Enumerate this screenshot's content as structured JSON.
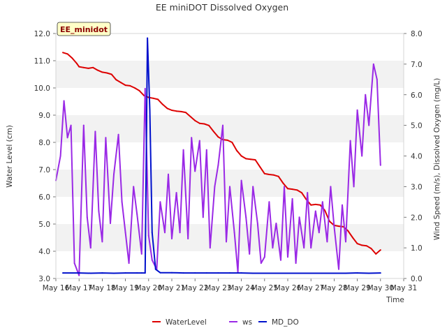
{
  "chart_data": {
    "type": "line",
    "title": "EE miniDOT Dissolved Oxygen",
    "badge": "EE_minidot",
    "xlabel": "Time",
    "ylabel_left": "Water Level (cm)",
    "ylabel_right": "Wind Speed (m/s), Dissolved Oxygen (mg/L)",
    "xlim": [
      16,
      31
    ],
    "ylim_left": [
      3.0,
      12.0
    ],
    "ylim_right": [
      0.0,
      8.0
    ],
    "x_ticks": [
      {
        "value": 16,
        "label": "May 16"
      },
      {
        "value": 17,
        "label": "May 17"
      },
      {
        "value": 18,
        "label": "May 18"
      },
      {
        "value": 19,
        "label": "May 19"
      },
      {
        "value": 20,
        "label": "May 20"
      },
      {
        "value": 21,
        "label": "May 21"
      },
      {
        "value": 22,
        "label": "May 22"
      },
      {
        "value": 23,
        "label": "May 23"
      },
      {
        "value": 24,
        "label": "May 24"
      },
      {
        "value": 25,
        "label": "May 25"
      },
      {
        "value": 26,
        "label": "May 26"
      },
      {
        "value": 27,
        "label": "May 27"
      },
      {
        "value": 28,
        "label": "May 28"
      },
      {
        "value": 29,
        "label": "May 29"
      },
      {
        "value": 30,
        "label": "May 30"
      },
      {
        "value": 31,
        "label": "May 31"
      }
    ],
    "y_ticks_left": [
      {
        "value": 3,
        "label": "3.0"
      },
      {
        "value": 4,
        "label": "4.0"
      },
      {
        "value": 5,
        "label": "5.0"
      },
      {
        "value": 6,
        "label": "6.0"
      },
      {
        "value": 7,
        "label": "7.0"
      },
      {
        "value": 8,
        "label": "8.0"
      },
      {
        "value": 9,
        "label": "9.0"
      },
      {
        "value": 10,
        "label": "10.0"
      },
      {
        "value": 11,
        "label": "11.0"
      },
      {
        "value": 12,
        "label": "12.0"
      }
    ],
    "y_ticks_right": [
      {
        "value": 0,
        "label": "0.0"
      },
      {
        "value": 1,
        "label": "1.0"
      },
      {
        "value": 2,
        "label": "2.0"
      },
      {
        "value": 3,
        "label": "3.0"
      },
      {
        "value": 4,
        "label": "4.0"
      },
      {
        "value": 5,
        "label": "5.0"
      },
      {
        "value": 6,
        "label": "6.0"
      },
      {
        "value": 7,
        "label": "7.0"
      },
      {
        "value": 8,
        "label": "8.0"
      }
    ],
    "grid": "horizontal bands",
    "legend_position": "bottom-center",
    "series": [
      {
        "name": "WaterLevel",
        "axis": "left",
        "color": "#dd0000",
        "x": [
          16.3,
          16.5,
          16.7,
          16.9,
          17.0,
          17.2,
          17.4,
          17.6,
          17.8,
          18.0,
          18.2,
          18.4,
          18.6,
          18.8,
          19.0,
          19.2,
          19.4,
          19.6,
          19.8,
          20.0,
          20.2,
          20.4,
          20.6,
          20.8,
          21.0,
          21.2,
          21.4,
          21.6,
          21.8,
          22.0,
          22.2,
          22.4,
          22.6,
          22.8,
          23.0,
          23.2,
          23.4,
          23.6,
          23.8,
          24.0,
          24.2,
          24.4,
          24.6,
          24.8,
          25.0,
          25.2,
          25.4,
          25.6,
          25.8,
          26.0,
          26.2,
          26.4,
          26.6,
          26.8,
          27.0,
          27.2,
          27.4,
          27.6,
          27.8,
          28.0,
          28.2,
          28.4,
          28.6,
          28.8,
          29.0,
          29.2,
          29.4,
          29.6,
          29.8,
          30.0
        ],
        "y": [
          11.3,
          11.25,
          11.1,
          10.9,
          10.78,
          10.75,
          10.72,
          10.75,
          10.65,
          10.58,
          10.55,
          10.5,
          10.3,
          10.2,
          10.1,
          10.08,
          10.0,
          9.9,
          9.72,
          9.65,
          9.62,
          9.58,
          9.4,
          9.25,
          9.18,
          9.15,
          9.13,
          9.1,
          8.95,
          8.8,
          8.7,
          8.68,
          8.62,
          8.4,
          8.2,
          8.1,
          8.08,
          8.0,
          7.7,
          7.5,
          7.4,
          7.38,
          7.36,
          7.1,
          6.85,
          6.82,
          6.8,
          6.75,
          6.5,
          6.3,
          6.28,
          6.25,
          6.15,
          5.9,
          5.7,
          5.72,
          5.7,
          5.5,
          5.1,
          4.95,
          4.92,
          4.9,
          4.75,
          4.5,
          4.28,
          4.22,
          4.2,
          4.1,
          3.9,
          4.05
        ]
      },
      {
        "name": "ws",
        "axis": "right",
        "color": "#9a29e6",
        "x": [
          16.0,
          16.2,
          16.35,
          16.5,
          16.65,
          16.8,
          17.0,
          17.2,
          17.35,
          17.5,
          17.7,
          17.85,
          18.0,
          18.15,
          18.35,
          18.5,
          18.7,
          18.85,
          19.0,
          19.15,
          19.35,
          19.5,
          19.7,
          19.85,
          20.0,
          20.15,
          20.35,
          20.5,
          20.7,
          20.85,
          21.0,
          21.2,
          21.35,
          21.5,
          21.7,
          21.85,
          22.0,
          22.2,
          22.35,
          22.5,
          22.65,
          22.85,
          23.0,
          23.2,
          23.35,
          23.5,
          23.7,
          23.85,
          24.0,
          24.2,
          24.35,
          24.5,
          24.7,
          24.85,
          25.0,
          25.2,
          25.35,
          25.5,
          25.7,
          25.85,
          26.0,
          26.2,
          26.35,
          26.5,
          26.7,
          26.85,
          27.0,
          27.2,
          27.35,
          27.5,
          27.7,
          27.85,
          28.0,
          28.2,
          28.35,
          28.5,
          28.7,
          28.85,
          29.0,
          29.2,
          29.35,
          29.5,
          29.7,
          29.85,
          30.0
        ],
        "y": [
          3.2,
          4.0,
          5.8,
          4.6,
          5.0,
          0.5,
          0.1,
          5.0,
          2.0,
          1.0,
          4.8,
          2.2,
          1.2,
          4.6,
          1.8,
          3.4,
          4.7,
          2.5,
          1.5,
          0.5,
          3.0,
          2.1,
          0.8,
          6.2,
          1.4,
          0.6,
          0.3,
          2.5,
          1.5,
          3.4,
          1.3,
          2.8,
          1.5,
          4.2,
          1.3,
          4.6,
          3.5,
          4.5,
          2.0,
          4.2,
          1.0,
          3.0,
          3.7,
          5.0,
          1.2,
          3.0,
          1.5,
          0.2,
          3.2,
          2.0,
          0.8,
          3.0,
          1.8,
          0.5,
          0.7,
          2.5,
          1.0,
          1.8,
          0.6,
          3.0,
          0.7,
          2.6,
          0.5,
          2.0,
          1.0,
          2.8,
          1.0,
          2.2,
          1.5,
          2.5,
          1.2,
          3.0,
          1.7,
          0.3,
          2.4,
          1.2,
          4.5,
          3.0,
          5.5,
          4.0,
          6.0,
          5.0,
          7.0,
          6.5,
          3.7
        ]
      },
      {
        "name": "MD_DO",
        "axis": "right",
        "color": "#0011cc",
        "x": [
          16.3,
          17.0,
          17.5,
          18.0,
          18.5,
          19.0,
          19.5,
          19.7,
          19.85,
          19.95,
          20.05,
          20.15,
          20.3,
          20.5,
          21.0,
          21.5,
          22.0,
          22.5,
          23.0,
          23.5,
          24.0,
          24.5,
          25.0,
          25.5,
          26.0,
          26.5,
          27.0,
          27.5,
          28.0,
          28.5,
          29.0,
          29.5,
          30.0
        ],
        "y": [
          0.18,
          0.18,
          0.17,
          0.18,
          0.17,
          0.18,
          0.18,
          0.18,
          0.18,
          7.85,
          5.5,
          1.5,
          0.3,
          0.19,
          0.19,
          0.18,
          0.18,
          0.18,
          0.18,
          0.18,
          0.18,
          0.17,
          0.17,
          0.17,
          0.17,
          0.17,
          0.17,
          0.17,
          0.17,
          0.17,
          0.18,
          0.17,
          0.18
        ]
      }
    ]
  }
}
